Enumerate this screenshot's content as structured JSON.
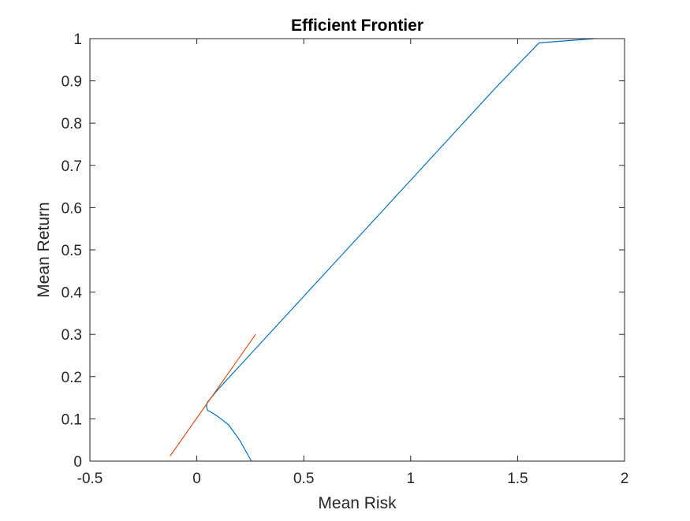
{
  "chart_data": {
    "type": "line",
    "title": "Efficient Frontier",
    "xlabel": "Mean Risk",
    "ylabel": "Mean Return",
    "xlim": [
      -0.5,
      2
    ],
    "ylim": [
      0,
      1
    ],
    "xticks": [
      -0.5,
      0,
      0.5,
      1,
      1.5,
      2
    ],
    "xtick_labels": [
      "-0.5",
      "0",
      "0.5",
      "1",
      "1.5",
      "2"
    ],
    "yticks": [
      0,
      0.1,
      0.2,
      0.3,
      0.4,
      0.5,
      0.6,
      0.7,
      0.8,
      0.9,
      1
    ],
    "ytick_labels": [
      "0",
      "0.1",
      "0.2",
      "0.3",
      "0.4",
      "0.5",
      "0.6",
      "0.7",
      "0.8",
      "0.9",
      "1"
    ],
    "grid": false,
    "legend": "none",
    "series": [
      {
        "color": "#0072BD",
        "x": [
          0.255,
          0.2,
          0.15,
          0.1,
          0.07,
          0.05,
          0.045,
          0.05,
          0.07,
          0.1,
          0.2,
          0.4,
          0.6,
          0.8,
          1.0,
          1.2,
          1.4,
          1.6,
          1.86
        ],
        "y": [
          0.0,
          0.05,
          0.085,
          0.105,
          0.115,
          0.12,
          0.13,
          0.14,
          0.152,
          0.17,
          0.225,
          0.335,
          0.445,
          0.555,
          0.665,
          0.775,
          0.885,
          0.99,
          1.0
        ]
      },
      {
        "color": "#D95319",
        "x": [
          -0.125,
          0.275
        ],
        "y": [
          0.012,
          0.3
        ]
      }
    ]
  }
}
